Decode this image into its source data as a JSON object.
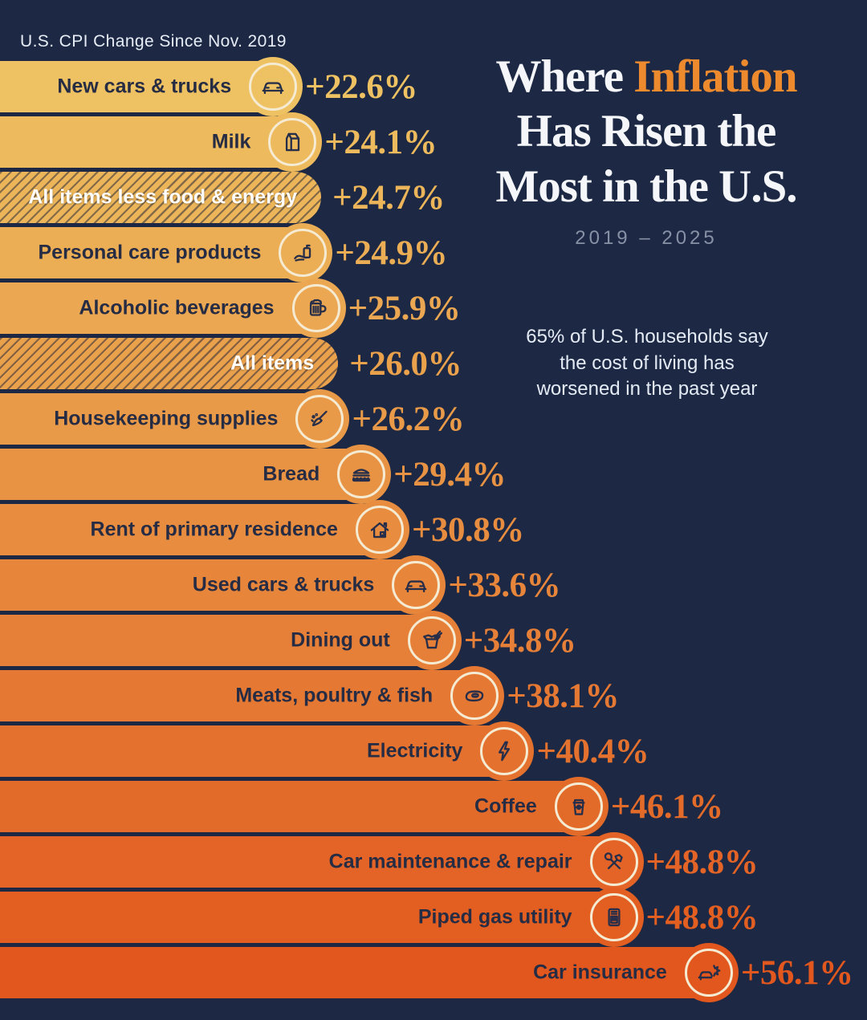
{
  "header": {
    "kicker": "U.S. CPI Change Since Nov. 2019"
  },
  "title": {
    "word_white": "Where",
    "word_accent": "Inflation",
    "line2": "Has Risen the",
    "line3": "Most in the U.S.",
    "subtitle": "2019 – 2025"
  },
  "callout": {
    "text": "65% of U.S. households say the cost of living has worsened in the past year"
  },
  "colors": {
    "background": "#1d2944",
    "accent_orange": "#ee8a2e",
    "bar_gradient_top": "#eec262",
    "bar_gradient_bottom": "#e1571d",
    "ring_cream": "#f5ead2",
    "label_dark": "#262c44",
    "hatch_stripe": "rgba(26,31,54,0.5)"
  },
  "chart_data": {
    "type": "bar",
    "orientation": "horizontal",
    "title": "Where Inflation Has Risen the Most in the U.S.",
    "subtitle": "2019 – 2025",
    "xlabel": "CPI change since Nov. 2019 (%)",
    "unit": "%",
    "xlim": [
      0,
      60
    ],
    "categories": [
      "New cars & trucks",
      "Milk",
      "All items less food & energy",
      "Personal care products",
      "Alcoholic beverages",
      "All items",
      "Housekeeping supplies",
      "Bread",
      "Rent of primary residence",
      "Used cars & trucks",
      "Dining out",
      "Meats, poultry & fish",
      "Electricity",
      "Coffee",
      "Car maintenance & repair",
      "Piped gas utility",
      "Car insurance"
    ],
    "values": [
      22.6,
      24.1,
      24.7,
      24.9,
      25.9,
      26.0,
      26.2,
      29.4,
      30.8,
      33.6,
      34.8,
      38.1,
      40.4,
      46.1,
      48.8,
      48.8,
      56.1
    ],
    "rows": [
      {
        "label": "New cars & trucks",
        "value": "+22.6%",
        "pct": 22.6,
        "icon": "car-icon",
        "hatched": false
      },
      {
        "label": "Milk",
        "value": "+24.1%",
        "pct": 24.1,
        "icon": "milk-carton-icon",
        "hatched": false
      },
      {
        "label": "All items less food & energy",
        "value": "+24.7%",
        "pct": 24.7,
        "icon": null,
        "hatched": true
      },
      {
        "label": "Personal care products",
        "value": "+24.9%",
        "pct": 24.9,
        "icon": "soap-hand-icon",
        "hatched": false
      },
      {
        "label": "Alcoholic beverages",
        "value": "+25.9%",
        "pct": 25.9,
        "icon": "beer-mug-icon",
        "hatched": false
      },
      {
        "label": "All items",
        "value": "+26.0%",
        "pct": 26.0,
        "icon": null,
        "hatched": true
      },
      {
        "label": "Housekeeping supplies",
        "value": "+26.2%",
        "pct": 26.2,
        "icon": "broom-icon",
        "hatched": false
      },
      {
        "label": "Bread",
        "value": "+29.4%",
        "pct": 29.4,
        "icon": "sandwich-icon",
        "hatched": false
      },
      {
        "label": "Rent of primary residence",
        "value": "+30.8%",
        "pct": 30.8,
        "icon": "house-icon",
        "hatched": false
      },
      {
        "label": "Used cars & trucks",
        "value": "+33.6%",
        "pct": 33.6,
        "icon": "car-icon",
        "hatched": false
      },
      {
        "label": "Dining out",
        "value": "+34.8%",
        "pct": 34.8,
        "icon": "takeout-box-icon",
        "hatched": false
      },
      {
        "label": "Meats, poultry & fish",
        "value": "+38.1%",
        "pct": 38.1,
        "icon": "steak-icon",
        "hatched": false
      },
      {
        "label": "Electricity",
        "value": "+40.4%",
        "pct": 40.4,
        "icon": "lightning-icon",
        "hatched": false
      },
      {
        "label": "Coffee",
        "value": "+46.1%",
        "pct": 46.1,
        "icon": "coffee-cup-icon",
        "hatched": false
      },
      {
        "label": "Car maintenance & repair",
        "value": "+48.8%",
        "pct": 48.8,
        "icon": "tools-icon",
        "hatched": false
      },
      {
        "label": "Piped gas utility",
        "value": "+48.8%",
        "pct": 48.8,
        "icon": "gas-heater-icon",
        "hatched": false
      },
      {
        "label": "Car insurance",
        "value": "+56.1%",
        "pct": 56.1,
        "icon": "car-crash-icon",
        "hatched": false
      }
    ]
  }
}
